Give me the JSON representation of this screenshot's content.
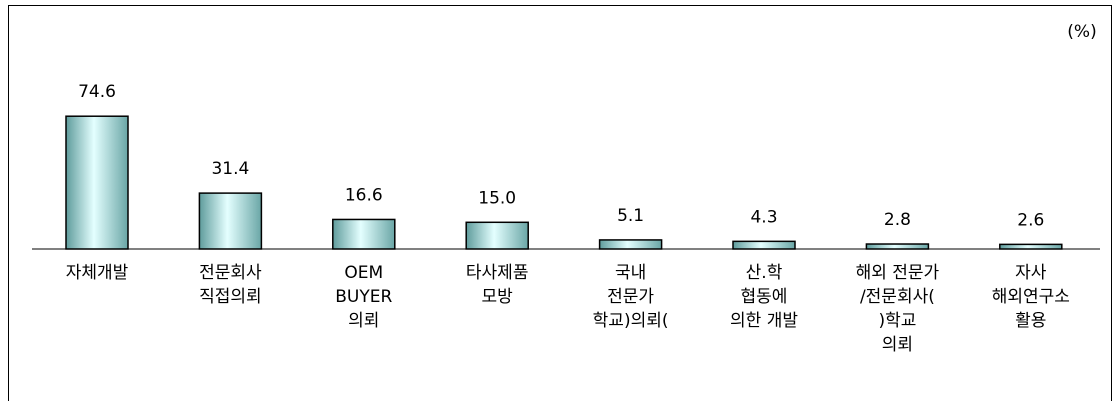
{
  "chart_data": {
    "type": "bar",
    "unit": "(%)",
    "categories": [
      [
        "자체개발"
      ],
      [
        "전문회사",
        "직접의뢰"
      ],
      [
        "OEM",
        "BUYER",
        "의뢰"
      ],
      [
        "타사제품",
        "모방"
      ],
      [
        "국내",
        "전문가",
        "학교)의뢰("
      ],
      [
        "산.학",
        "협동에",
        "의한 개발"
      ],
      [
        "해외 전문가",
        "/전문회사(",
        ")학교",
        "의뢰"
      ],
      [
        "자사",
        "해외연구소",
        "활용"
      ]
    ],
    "values": [
      74.6,
      31.4,
      16.6,
      15.0,
      5.1,
      4.3,
      2.8,
      2.6
    ],
    "value_labels": [
      "74.6",
      "31.4",
      "16.6",
      "15.0",
      "5.1",
      "4.3",
      "2.8",
      "2.6"
    ],
    "color": "#c8f4f4"
  }
}
